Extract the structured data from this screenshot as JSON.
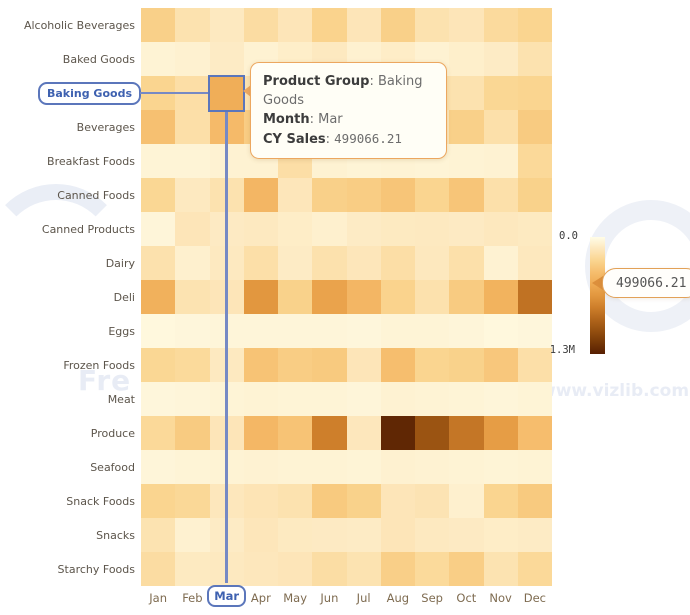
{
  "watermarks": {
    "free_text": "Fre",
    "url_text": "www.vizlib.com"
  },
  "selection": {
    "row_label": "Baking Goods",
    "col_label": "Mar"
  },
  "tooltip": {
    "rows": [
      {
        "label": "Product Group",
        "value": "Baking Goods"
      },
      {
        "label": "Month",
        "value": "Mar"
      },
      {
        "label": "CY Sales",
        "value": "499066.21"
      }
    ]
  },
  "legend": {
    "top_label": "0.0",
    "bottom_label": "1.3M",
    "callout_value": "499066.21"
  },
  "colors": {
    "selection_blue": "#5B76BB",
    "selection_text": "#3E61B0",
    "crosshair": "#7689C4",
    "tooltip_border": "#ECA75F",
    "callout_arrow": "#DC8F3C",
    "row_label": "#5C554B",
    "month_label": "#7E6B50",
    "watermark": "#E8ECF5"
  },
  "chart_data": {
    "type": "heatmap",
    "x_dimension": "Month",
    "y_dimension": "Product Group",
    "measure": "CY Sales",
    "columns": [
      "Jan",
      "Feb",
      "Mar",
      "Apr",
      "May",
      "Jun",
      "Jul",
      "Aug",
      "Sep",
      "Oct",
      "Nov",
      "Dec"
    ],
    "rows": [
      "Alcoholic Beverages",
      "Baked Goods",
      "Baking Goods",
      "Beverages",
      "Breakfast Foods",
      "Canned Foods",
      "Canned Products",
      "Dairy",
      "Deli",
      "Eggs",
      "Frozen Foods",
      "Meat",
      "Produce",
      "Seafood",
      "Snack Foods",
      "Snacks",
      "Starchy Foods"
    ],
    "values": [
      [
        286000,
        169000,
        117000,
        208000,
        143000,
        273000,
        143000,
        286000,
        169000,
        143000,
        221000,
        260000
      ],
      [
        58500,
        71500,
        104000,
        65000,
        91000,
        117000,
        71500,
        97500,
        65000,
        84500,
        104000,
        169000
      ],
      [
        260000,
        195000,
        499066.21,
        156000,
        182000,
        208000,
        156000,
        195000,
        169000,
        169000,
        247000,
        260000
      ],
      [
        377000,
        188500,
        416000,
        305500,
        130000,
        169000,
        273000,
        221000,
        136500,
        286000,
        182000,
        318500
      ],
      [
        52000,
        52000,
        65000,
        65000,
        195000,
        65000,
        52000,
        58500,
        52000,
        58500,
        65000,
        234000
      ],
      [
        247000,
        117000,
        169000,
        442000,
        136500,
        286000,
        305500,
        351000,
        260000,
        351000,
        182000,
        279500
      ],
      [
        45500,
        143000,
        110500,
        117000,
        97500,
        78000,
        104000,
        114400,
        117000,
        110500,
        123500,
        114400
      ],
      [
        175500,
        78000,
        117000,
        188500,
        104000,
        175500,
        136500,
        195000,
        123500,
        182000,
        65000,
        123500
      ],
      [
        481000,
        162500,
        143000,
        650000,
        279500,
        572000,
        442000,
        273000,
        175500,
        318500,
        468000,
        845000
      ],
      [
        32500,
        39000,
        45500,
        45500,
        45500,
        45500,
        39000,
        52000,
        52000,
        45500,
        32500,
        39000
      ],
      [
        247000,
        227500,
        117000,
        364000,
        305500,
        325000,
        143000,
        390000,
        260000,
        279500,
        338000,
        188500
      ],
      [
        39000,
        45500,
        52000,
        58500,
        52000,
        52000,
        45500,
        65000,
        58500,
        52000,
        45500,
        52000
      ],
      [
        234000,
        318500,
        143000,
        435500,
        364000,
        780000,
        130000,
        1261000,
        1014000,
        825500,
        611000,
        396500
      ],
      [
        45500,
        52000,
        58500,
        65000,
        58500,
        58500,
        52000,
        71500,
        65000,
        58500,
        52000,
        58500
      ],
      [
        260000,
        240500,
        130000,
        149500,
        169000,
        325000,
        279500,
        143000,
        156000,
        78000,
        260000,
        325000
      ],
      [
        162500,
        71500,
        104000,
        136500,
        114400,
        110500,
        104000,
        143000,
        117000,
        110500,
        97500,
        104000
      ],
      [
        208000,
        114400,
        117000,
        130000,
        143000,
        201500,
        162500,
        292500,
        227500,
        299000,
        162500,
        234000
      ]
    ],
    "color_scale": {
      "min": 0,
      "max": 1300000,
      "min_label": "0.0",
      "max_label": "1.3M",
      "stops": [
        [
          "0.00",
          "#FFFDE8"
        ],
        [
          "0.10",
          "#FDE7BC"
        ],
        [
          "0.20",
          "#FAD590"
        ],
        [
          "0.30",
          "#F6BE6E"
        ],
        [
          "0.40",
          "#EFAB54"
        ],
        [
          "0.50",
          "#E2973F"
        ],
        [
          "0.60",
          "#CE7F2B"
        ],
        [
          "0.70",
          "#B2661C"
        ],
        [
          "0.80",
          "#955010"
        ],
        [
          "0.90",
          "#763807"
        ],
        [
          "1.00",
          "#571F02"
        ]
      ]
    },
    "selected": {
      "row": "Baking Goods",
      "col": "Mar",
      "value": 499066.21
    },
    "legend_position": "right",
    "grid": false
  }
}
